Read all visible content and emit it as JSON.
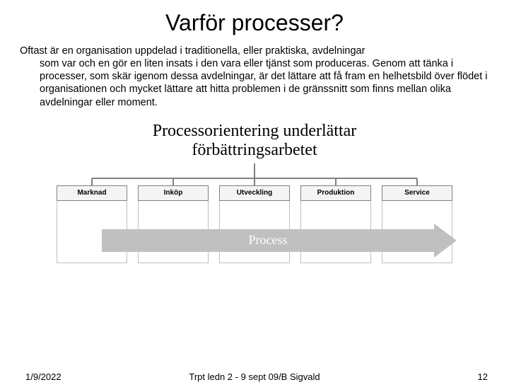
{
  "title": "Varför processer?",
  "paragraph_first": "Oftast är en organisation uppdelad i traditionella, eller praktiska, avdelningar",
  "paragraph_rest": "som var och en gör en liten insats i den vara eller tjänst som produceras. Genom att tänka i processer, som skär igenom dessa avdelningar, är det lättare att få fram en helhetsbild över flödet i organisationen och mycket lättare att hitta problemen i de gränssnitt som finns mellan olika avdelningar eller moment.",
  "diagram": {
    "heading_line1": "Processorientering underlättar",
    "heading_line2": "förbättringsarbetet",
    "departments": [
      "Marknad",
      "Inköp",
      "Utveckling",
      "Produktion",
      "Service"
    ],
    "arrow_label": "Process",
    "colors": {
      "box_border": "#808080",
      "box_bg": "#f4f4f4",
      "column_border": "#bfbfbf",
      "arrow_fill": "#c0c0c0",
      "arrow_text": "#ffffff"
    }
  },
  "footer": {
    "date": "1/9/2022",
    "center": "Trpt ledn 2 - 9 sept 09/B Sigvald",
    "page": "12"
  }
}
